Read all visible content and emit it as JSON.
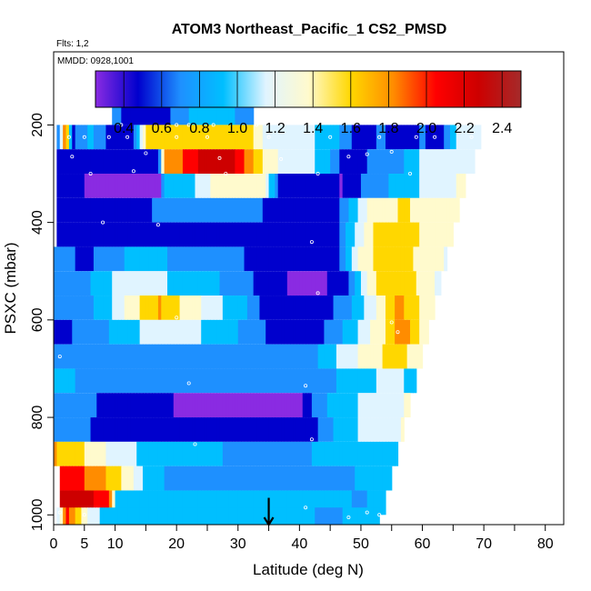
{
  "chart_data": {
    "type": "heatmap",
    "title": "ATOM3 Northeast_Pacific_1 CS2_PMSD",
    "annotations": [
      "Flts: 1,2",
      "MMDD: 0928,1001"
    ],
    "xlabel": "Latitude (deg N)",
    "ylabel": "PSXC (mbar)",
    "xlim": [
      0,
      83
    ],
    "ylim": [
      1020,
      50
    ],
    "x_ticks": [
      0,
      5,
      10,
      20,
      30,
      40,
      50,
      60,
      70,
      80
    ],
    "x_minor_ticks": [
      15,
      25,
      35,
      45,
      55,
      65,
      75
    ],
    "y_ticks": [
      200,
      400,
      600,
      800,
      1000
    ],
    "colorbar": {
      "range": [
        0.25,
        2.5
      ],
      "tick_values": [
        0.4,
        0.6,
        0.8,
        1.0,
        1.2,
        1.4,
        1.6,
        1.8,
        2.0,
        2.2,
        2.4
      ],
      "tick_labels": [
        "0.4",
        "0.6",
        "0.8",
        "1.0",
        "1.2",
        "1.4",
        "1.6",
        "1.8",
        "2.0",
        "2.2",
        "2.4"
      ],
      "colors": [
        "#8a2be2",
        "#0000cd",
        "#1e90ff",
        "#00bfff",
        "#e0f4ff",
        "#fffacd",
        "#ffd700",
        "#ff8c00",
        "#ff0000",
        "#cd0000",
        "#a52a2a"
      ]
    },
    "row_height_mbar": 50,
    "rows": [
      {
        "p": 175,
        "x0": 9.5,
        "x1": 32.5,
        "knots": [
          [
            9.5,
            0.9
          ],
          [
            12,
            0.5
          ],
          [
            16,
            0.5
          ],
          [
            20,
            0.7
          ],
          [
            24,
            1.0
          ],
          [
            28,
            0.9
          ],
          [
            32.5,
            0.8
          ]
        ]
      },
      {
        "p": 225,
        "x0": 0.5,
        "x1": 69.5,
        "knots": [
          [
            0.5,
            0.5
          ],
          [
            2,
            2.0
          ],
          [
            3,
            0.6
          ],
          [
            6,
            0.9
          ],
          [
            10,
            0.5
          ],
          [
            13,
            0.6
          ],
          [
            15,
            1.5
          ],
          [
            20,
            1.5
          ],
          [
            25,
            1.5
          ],
          [
            32,
            1.55
          ],
          [
            34,
            1.25
          ],
          [
            40,
            1.15
          ],
          [
            45,
            1.0
          ],
          [
            50,
            0.5
          ],
          [
            53,
            0.7
          ],
          [
            57,
            0.5
          ],
          [
            60,
            0.7
          ],
          [
            63,
            0.5
          ],
          [
            65,
            1.05
          ],
          [
            69.5,
            1.2
          ]
        ]
      },
      {
        "p": 275,
        "x0": 0.5,
        "x1": 68.5,
        "knots": [
          [
            0.5,
            0.5
          ],
          [
            17,
            0.5
          ],
          [
            18,
            1.7
          ],
          [
            21,
            1.9
          ],
          [
            25,
            2.2
          ],
          [
            28,
            2.25
          ],
          [
            31,
            1.9
          ],
          [
            35,
            1.3
          ],
          [
            40,
            1.2
          ],
          [
            44,
            1.0
          ],
          [
            48,
            0.5
          ],
          [
            52,
            0.7
          ],
          [
            56,
            0.8
          ],
          [
            60,
            1.1
          ],
          [
            64,
            1.2
          ],
          [
            68.5,
            1.25
          ]
        ]
      },
      {
        "p": 325,
        "x0": 0.5,
        "x1": 67,
        "knots": [
          [
            0.5,
            0.5
          ],
          [
            10,
            0.4
          ],
          [
            17,
            0.3
          ],
          [
            18,
            0.9
          ],
          [
            22,
            1.0
          ],
          [
            26,
            1.3
          ],
          [
            34,
            1.4
          ],
          [
            37,
            0.5
          ],
          [
            42,
            0.5
          ],
          [
            47,
            0.45
          ],
          [
            52,
            0.8
          ],
          [
            56,
            0.9
          ],
          [
            60,
            1.1
          ],
          [
            64,
            1.25
          ],
          [
            67,
            1.3
          ]
        ]
      },
      {
        "p": 375,
        "x0": 0.5,
        "x1": 66,
        "knots": [
          [
            0.5,
            0.5
          ],
          [
            10,
            0.6
          ],
          [
            20,
            0.7
          ],
          [
            30,
            0.7
          ],
          [
            40,
            0.6
          ],
          [
            46,
            0.6
          ],
          [
            49,
            1.0
          ],
          [
            52,
            1.4
          ],
          [
            57,
            1.5
          ],
          [
            61,
            1.4
          ],
          [
            66,
            1.3
          ]
        ]
      },
      {
        "p": 425,
        "x0": 0.5,
        "x1": 65,
        "knots": [
          [
            0.5,
            0.6
          ],
          [
            10,
            0.5
          ],
          [
            20,
            0.5
          ],
          [
            30,
            0.5
          ],
          [
            40,
            0.5
          ],
          [
            46,
            0.55
          ],
          [
            49,
            1.1
          ],
          [
            52,
            1.5
          ],
          [
            56,
            1.6
          ],
          [
            60,
            1.45
          ],
          [
            65,
            1.3
          ]
        ]
      },
      {
        "p": 475,
        "x0": 0,
        "x1": 64,
        "knots": [
          [
            0,
            0.8
          ],
          [
            5,
            0.6
          ],
          [
            10,
            0.8
          ],
          [
            15,
            1.0
          ],
          [
            20,
            0.8
          ],
          [
            28,
            0.7
          ],
          [
            35,
            0.6
          ],
          [
            42,
            0.5
          ],
          [
            46,
            0.55
          ],
          [
            49,
            1.2
          ],
          [
            53,
            1.6
          ],
          [
            57,
            1.55
          ],
          [
            61,
            1.35
          ],
          [
            64,
            1.25
          ]
        ]
      },
      {
        "p": 525,
        "x0": 0,
        "x1": 63,
        "knots": [
          [
            0,
            0.7
          ],
          [
            5,
            0.8
          ],
          [
            10,
            1.1
          ],
          [
            15,
            1.2
          ],
          [
            20,
            1.0
          ],
          [
            25,
            0.9
          ],
          [
            30,
            0.8
          ],
          [
            35,
            0.5
          ],
          [
            42,
            0.4
          ],
          [
            47,
            0.5
          ],
          [
            50,
            1.1
          ],
          [
            53,
            1.6
          ],
          [
            56,
            1.65
          ],
          [
            60,
            1.4
          ],
          [
            63,
            1.2
          ]
        ]
      },
      {
        "p": 575,
        "x0": 0,
        "x1": 62,
        "knots": [
          [
            0,
            0.7
          ],
          [
            8,
            0.9
          ],
          [
            12,
            1.3
          ],
          [
            17,
            1.7
          ],
          [
            22,
            1.4
          ],
          [
            27,
            1.1
          ],
          [
            31,
            0.9
          ],
          [
            34,
            0.6
          ],
          [
            38,
            0.5
          ],
          [
            43,
            0.5
          ],
          [
            48,
            0.8
          ],
          [
            52,
            1.2
          ],
          [
            56,
            1.75
          ],
          [
            59,
            1.5
          ],
          [
            62,
            1.3
          ]
        ]
      },
      {
        "p": 625,
        "x0": 0,
        "x1": 61,
        "knots": [
          [
            0,
            0.6
          ],
          [
            5,
            0.7
          ],
          [
            10,
            0.9
          ],
          [
            15,
            1.1
          ],
          [
            20,
            1.2
          ],
          [
            26,
            1.0
          ],
          [
            32,
            0.8
          ],
          [
            36,
            0.55
          ],
          [
            41,
            0.45
          ],
          [
            46,
            0.8
          ],
          [
            50,
            1.1
          ],
          [
            54,
            1.5
          ],
          [
            57,
            1.85
          ],
          [
            61,
            1.3
          ]
        ]
      },
      {
        "p": 675,
        "x0": 0,
        "x1": 60,
        "knots": [
          [
            0,
            0.8
          ],
          [
            10,
            0.8
          ],
          [
            20,
            0.8
          ],
          [
            30,
            0.85
          ],
          [
            36,
            0.8
          ],
          [
            40,
            0.75
          ],
          [
            44,
            0.9
          ],
          [
            48,
            1.2
          ],
          [
            52,
            1.4
          ],
          [
            56,
            1.6
          ],
          [
            60,
            1.3
          ]
        ]
      },
      {
        "p": 725,
        "x0": 0,
        "x1": 59,
        "knots": [
          [
            0,
            0.9
          ],
          [
            10,
            0.8
          ],
          [
            20,
            0.75
          ],
          [
            30,
            0.8
          ],
          [
            38,
            0.75
          ],
          [
            44,
            0.8
          ],
          [
            50,
            1.0
          ],
          [
            55,
            1.15
          ],
          [
            59,
            1.0
          ]
        ]
      },
      {
        "p": 775,
        "x0": 0,
        "x1": 58,
        "knots": [
          [
            0,
            0.8
          ],
          [
            10,
            0.6
          ],
          [
            20,
            0.45
          ],
          [
            30,
            0.35
          ],
          [
            35,
            0.3
          ],
          [
            40,
            0.35
          ],
          [
            43,
            0.8
          ],
          [
            47,
            1.0
          ],
          [
            52,
            1.15
          ],
          [
            58,
            1.3
          ]
        ]
      },
      {
        "p": 825,
        "x0": 0,
        "x1": 57,
        "knots": [
          [
            0,
            0.75
          ],
          [
            10,
            0.6
          ],
          [
            20,
            0.55
          ],
          [
            30,
            0.55
          ],
          [
            38,
            0.6
          ],
          [
            42,
            0.6
          ],
          [
            46,
            0.9
          ],
          [
            50,
            1.1
          ],
          [
            55,
            1.2
          ],
          [
            57,
            1.3
          ]
        ]
      },
      {
        "p": 875,
        "x0": 0,
        "x1": 56,
        "knots": [
          [
            0,
            1.7
          ],
          [
            3,
            1.6
          ],
          [
            6,
            1.4
          ],
          [
            10,
            1.2
          ],
          [
            15,
            1.0
          ],
          [
            20,
            0.9
          ],
          [
            30,
            0.85
          ],
          [
            40,
            0.85
          ],
          [
            48,
            0.9
          ],
          [
            52,
            1.0
          ],
          [
            56,
            0.9
          ]
        ]
      },
      {
        "p": 925,
        "x0": 1,
        "x1": 55,
        "knots": [
          [
            1,
            1.9
          ],
          [
            5,
            1.9
          ],
          [
            10,
            1.6
          ],
          [
            13,
            1.3
          ],
          [
            16,
            0.9
          ],
          [
            22,
            0.8
          ],
          [
            30,
            0.8
          ],
          [
            40,
            0.8
          ],
          [
            48,
            0.85
          ],
          [
            52,
            0.9
          ],
          [
            55,
            0.9
          ]
        ]
      },
      {
        "p": 975,
        "x0": 1,
        "x1": 54,
        "knots": [
          [
            1,
            2.3
          ],
          [
            5,
            2.2
          ],
          [
            8,
            2.0
          ],
          [
            9.5,
            1.8
          ],
          [
            10,
            1.0
          ],
          [
            15,
            0.9
          ],
          [
            25,
            0.9
          ],
          [
            35,
            0.9
          ],
          [
            45,
            0.9
          ],
          [
            50,
            0.85
          ],
          [
            54,
            0.9
          ]
        ]
      },
      {
        "p": 1010,
        "x0": 0.5,
        "x1": 53,
        "knots": [
          [
            0.5,
            0.9
          ],
          [
            2,
            2.0
          ],
          [
            4,
            1.6
          ],
          [
            6,
            1.2
          ],
          [
            8,
            1.0
          ],
          [
            15,
            0.95
          ],
          [
            25,
            0.95
          ],
          [
            35,
            0.9
          ],
          [
            45,
            0.85
          ],
          [
            53,
            0.9
          ]
        ]
      }
    ],
    "points": [
      [
        11,
        200
      ],
      [
        20,
        200
      ],
      [
        22,
        200
      ],
      [
        26,
        200
      ],
      [
        33,
        200
      ],
      [
        2.5,
        225
      ],
      [
        5,
        225
      ],
      [
        9,
        225
      ],
      [
        12,
        225
      ],
      [
        20,
        225
      ],
      [
        25,
        225
      ],
      [
        35,
        225
      ],
      [
        45,
        225
      ],
      [
        53,
        225
      ],
      [
        59,
        225
      ],
      [
        62,
        225
      ],
      [
        68,
        225
      ],
      [
        3,
        265
      ],
      [
        15,
        258
      ],
      [
        27,
        268
      ],
      [
        37,
        270
      ],
      [
        48,
        265
      ],
      [
        51,
        260
      ],
      [
        55,
        255
      ],
      [
        6,
        300
      ],
      [
        13,
        295
      ],
      [
        28,
        300
      ],
      [
        43,
        300
      ],
      [
        58,
        300
      ],
      [
        8,
        400
      ],
      [
        17,
        405
      ],
      [
        42,
        440
      ],
      [
        43,
        545
      ],
      [
        20,
        595
      ],
      [
        55,
        605
      ],
      [
        56,
        625
      ],
      [
        1,
        675
      ],
      [
        22,
        730
      ],
      [
        41,
        735
      ],
      [
        42,
        845
      ],
      [
        23,
        855
      ],
      [
        59,
        850
      ],
      [
        41,
        985
      ],
      [
        48,
        1005
      ],
      [
        51,
        995
      ],
      [
        53,
        1000
      ],
      [
        1,
        995
      ],
      [
        5,
        1000
      ],
      [
        58,
        1010
      ]
    ],
    "marker": {
      "type": "arrow",
      "x": 35,
      "from_p": 965,
      "to_p": 1020
    }
  }
}
